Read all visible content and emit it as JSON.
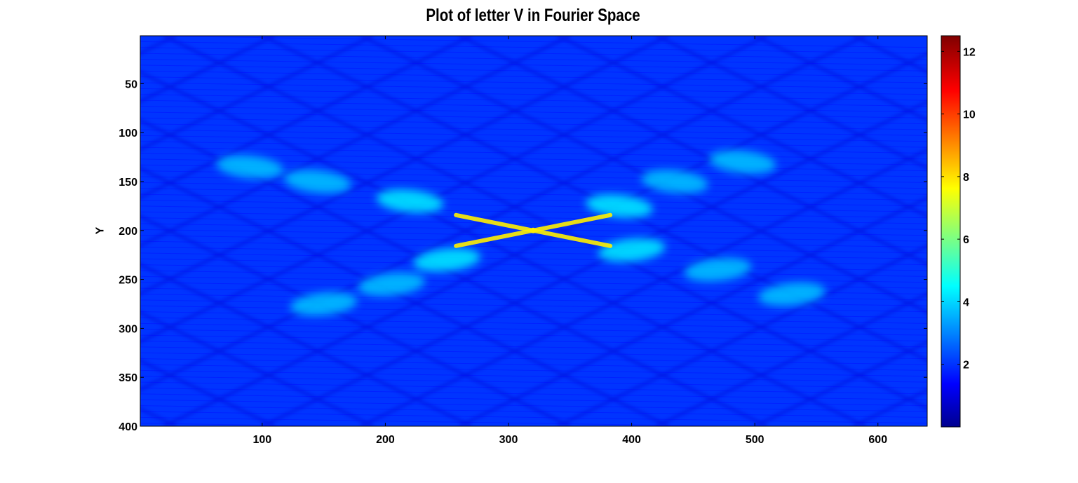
{
  "chart_data": {
    "type": "heatmap",
    "title": "Plot of letter V in Fourier Space",
    "xlabel": "",
    "ylabel": "Y",
    "x_range": [
      1,
      640
    ],
    "y_range": [
      1,
      400
    ],
    "y_reversed": true,
    "x_ticks": [
      100,
      200,
      300,
      400,
      500,
      600
    ],
    "y_ticks": [
      50,
      100,
      150,
      200,
      250,
      300,
      350,
      400
    ],
    "colorbar": {
      "colormap": "jet",
      "range": [
        0,
        12.5
      ],
      "ticks": [
        2,
        4,
        6,
        8,
        10,
        12
      ]
    },
    "peak": {
      "x": 320,
      "y": 200,
      "value": 8
    },
    "bright_band_centers": [
      {
        "x": 250,
        "y": 230,
        "value": 4.5
      },
      {
        "x": 205,
        "y": 255,
        "value": 4
      },
      {
        "x": 150,
        "y": 275,
        "value": 4
      },
      {
        "x": 390,
        "y": 175,
        "value": 4.5
      },
      {
        "x": 435,
        "y": 150,
        "value": 4
      },
      {
        "x": 490,
        "y": 130,
        "value": 4
      },
      {
        "x": 220,
        "y": 170,
        "value": 4.5
      },
      {
        "x": 145,
        "y": 150,
        "value": 4
      },
      {
        "x": 90,
        "y": 135,
        "value": 4
      },
      {
        "x": 400,
        "y": 220,
        "value": 4.5
      },
      {
        "x": 470,
        "y": 240,
        "value": 4
      },
      {
        "x": 530,
        "y": 265,
        "value": 4
      }
    ],
    "grid": false,
    "legend": "none"
  }
}
